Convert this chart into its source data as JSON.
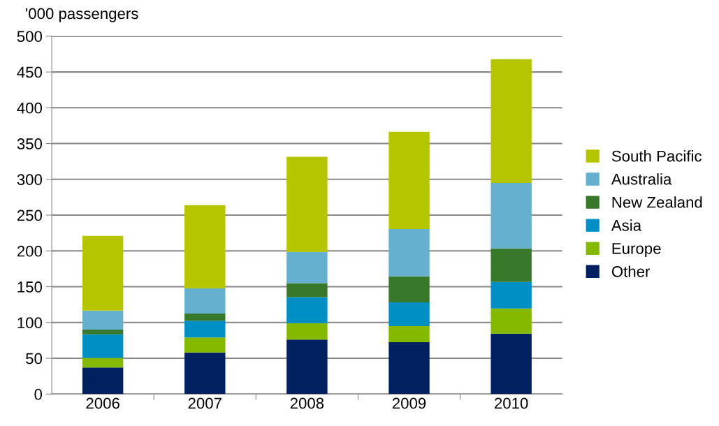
{
  "chart_data": {
    "type": "bar",
    "stacked": true,
    "ylabel": "'000 passengers",
    "categories": [
      "2006",
      "2007",
      "2008",
      "2009",
      "2010"
    ],
    "series": [
      {
        "name": "Other",
        "color": "#002060",
        "values": [
          37,
          58,
          76,
          72.5,
          84.5
        ]
      },
      {
        "name": "Europe",
        "color": "#84b900",
        "values": [
          13.5,
          21,
          23,
          22.5,
          35
        ]
      },
      {
        "name": "Asia",
        "color": "#008fc5",
        "values": [
          33,
          23.5,
          36.5,
          33,
          37
        ]
      },
      {
        "name": "New Zealand",
        "color": "#37782a",
        "values": [
          6.5,
          10,
          19.5,
          36.5,
          47
        ]
      },
      {
        "name": "Australia",
        "color": "#66b0cf",
        "values": [
          26.5,
          35,
          43.5,
          66,
          91.5
        ]
      },
      {
        "name": "South Pacific",
        "color": "#b5c500",
        "values": [
          104.5,
          116.5,
          133,
          136,
          173
        ]
      }
    ],
    "ylim": [
      0,
      500
    ],
    "yticks": [
      0,
      50,
      100,
      150,
      200,
      250,
      300,
      350,
      400,
      450,
      500
    ],
    "grid": "y",
    "legend": "right"
  }
}
